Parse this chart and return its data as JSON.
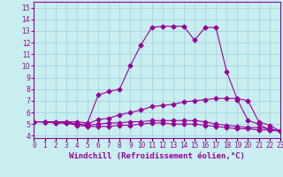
{
  "xlabel": "Windchill (Refroidissement éolien,°C)",
  "x": [
    0,
    1,
    2,
    3,
    4,
    5,
    6,
    7,
    8,
    9,
    10,
    11,
    12,
    13,
    14,
    15,
    16,
    17,
    18,
    19,
    20,
    21,
    22,
    23
  ],
  "line1": [
    5.2,
    5.2,
    5.2,
    5.2,
    5.2,
    5.1,
    7.5,
    7.8,
    8.0,
    10.0,
    11.8,
    13.3,
    13.4,
    13.4,
    13.4,
    12.2,
    13.3,
    13.3,
    9.5,
    7.1,
    5.3,
    5.0,
    4.5,
    4.4
  ],
  "line2": [
    5.2,
    5.2,
    5.2,
    5.2,
    5.0,
    5.0,
    5.4,
    5.5,
    5.8,
    6.0,
    6.2,
    6.5,
    6.6,
    6.7,
    6.9,
    7.0,
    7.1,
    7.2,
    7.2,
    7.2,
    7.0,
    5.2,
    4.9,
    4.4
  ],
  "line3": [
    5.2,
    5.2,
    5.1,
    5.1,
    5.0,
    4.9,
    5.0,
    5.1,
    5.1,
    5.2,
    5.2,
    5.3,
    5.3,
    5.3,
    5.3,
    5.3,
    5.2,
    5.0,
    4.9,
    4.8,
    4.7,
    4.7,
    4.6,
    4.4
  ],
  "line4": [
    5.2,
    5.2,
    5.1,
    5.1,
    4.9,
    4.8,
    4.8,
    4.8,
    4.9,
    4.9,
    5.0,
    5.1,
    5.1,
    5.0,
    5.0,
    5.0,
    4.9,
    4.8,
    4.7,
    4.6,
    4.6,
    4.5,
    4.5,
    4.4
  ],
  "line_color": "#990099",
  "bg_color": "#c8eef0",
  "grid_color": "#a0d0d8",
  "ylim": [
    3.8,
    15.5
  ],
  "xlim": [
    0,
    23
  ],
  "yticks": [
    4,
    5,
    6,
    7,
    8,
    9,
    10,
    11,
    12,
    13,
    14,
    15
  ],
  "marker": "D",
  "marker_size": 2.5,
  "linewidth": 0.8,
  "tick_fontsize": 5.5,
  "label_fontsize": 6.5
}
